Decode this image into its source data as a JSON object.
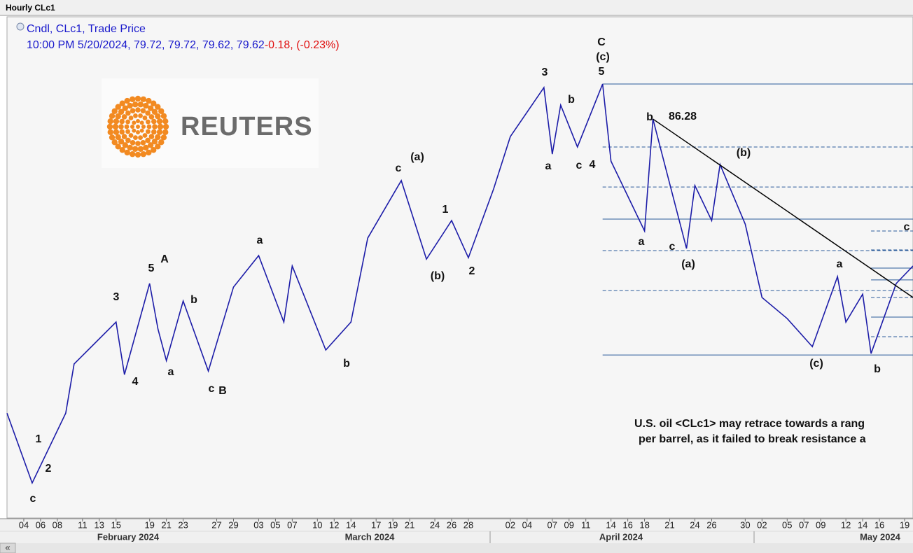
{
  "window_title": "Hourly CLc1",
  "chart_data": {
    "type": "line",
    "series": [
      {
        "name": "Cndl, CLc1, Trade Price",
        "color": "#1c1ca8",
        "values": [
          73.85,
          70.9,
          73.85,
          75.93,
          77.7,
          75.48,
          79.33,
          77.4,
          76.07,
          78.59,
          75.63,
          79.18,
          80.51,
          77.7,
          80.07,
          76.52,
          77.7,
          81.25,
          83.68,
          80.36,
          81.99,
          80.42,
          83.32,
          85.54,
          87.61,
          84.8,
          86.87,
          85.1,
          87.76,
          84.5,
          81.55,
          86.28,
          80.81,
          83.47,
          81.99,
          84.36,
          81.84,
          78.74,
          77.85,
          76.66,
          79.62,
          77.7,
          78.88,
          76.37,
          79.33,
          80.07
        ]
      }
    ],
    "x": [
      "2024-02-02",
      "2024-02-05",
      "2024-02-09",
      "2024-02-10",
      "2024-02-15",
      "2024-02-16",
      "2024-02-19",
      "2024-02-20",
      "2024-02-21",
      "2024-02-23",
      "2024-02-26",
      "2024-02-29",
      "2024-03-03",
      "2024-03-06",
      "2024-03-07",
      "2024-03-11",
      "2024-03-14",
      "2024-03-16",
      "2024-03-20",
      "2024-03-23",
      "2024-03-26",
      "2024-03-28",
      "2024-03-31",
      "2024-04-02",
      "2024-04-06",
      "2024-04-07",
      "2024-04-08",
      "2024-04-10",
      "2024-04-13",
      "2024-04-14",
      "2024-04-18",
      "2024-04-19",
      "2024-04-23",
      "2024-04-24",
      "2024-04-26",
      "2024-04-27",
      "2024-04-30",
      "2024-05-02",
      "2024-05-05",
      "2024-05-08",
      "2024-05-11",
      "2024-05-12",
      "2024-05-14",
      "2024-05-15",
      "2024-05-18",
      "2024-05-20"
    ],
    "legend_detail": "10:00 PM 5/20/2024, 79.72, 79.72, 79.62, 79.62",
    "legend_change": "-0.18, (-0.23%)",
    "xlim": [
      "2024-02-02",
      "2024-05-20"
    ],
    "ylim": [
      69.42,
      90.66
    ],
    "xticks": [
      {
        "value": "2024-02-04",
        "label": "04"
      },
      {
        "value": "2024-02-06",
        "label": "06"
      },
      {
        "value": "2024-02-08",
        "label": "08"
      },
      {
        "value": "2024-02-11",
        "label": "11"
      },
      {
        "value": "2024-02-13",
        "label": "13"
      },
      {
        "value": "2024-02-15",
        "label": "15"
      },
      {
        "value": "2024-02-19",
        "label": "19"
      },
      {
        "value": "2024-02-21",
        "label": "21"
      },
      {
        "value": "2024-02-23",
        "label": "23"
      },
      {
        "value": "2024-02-27",
        "label": "27"
      },
      {
        "value": "2024-02-29",
        "label": "29"
      },
      {
        "value": "2024-03-03",
        "label": "03"
      },
      {
        "value": "2024-03-05",
        "label": "05"
      },
      {
        "value": "2024-03-07",
        "label": "07"
      },
      {
        "value": "2024-03-10",
        "label": "10"
      },
      {
        "value": "2024-03-12",
        "label": "12"
      },
      {
        "value": "2024-03-14",
        "label": "14"
      },
      {
        "value": "2024-03-17",
        "label": "17"
      },
      {
        "value": "2024-03-19",
        "label": "19"
      },
      {
        "value": "2024-03-21",
        "label": "21"
      },
      {
        "value": "2024-03-24",
        "label": "24"
      },
      {
        "value": "2024-03-26",
        "label": "26"
      },
      {
        "value": "2024-03-28",
        "label": "28"
      },
      {
        "value": "2024-04-02",
        "label": "02"
      },
      {
        "value": "2024-04-04",
        "label": "04"
      },
      {
        "value": "2024-04-07",
        "label": "07"
      },
      {
        "value": "2024-04-09",
        "label": "09"
      },
      {
        "value": "2024-04-11",
        "label": "11"
      },
      {
        "value": "2024-04-14",
        "label": "14"
      },
      {
        "value": "2024-04-16",
        "label": "16"
      },
      {
        "value": "2024-04-18",
        "label": "18"
      },
      {
        "value": "2024-04-21",
        "label": "21"
      },
      {
        "value": "2024-04-24",
        "label": "24"
      },
      {
        "value": "2024-04-26",
        "label": "26"
      },
      {
        "value": "2024-04-30",
        "label": "30"
      },
      {
        "value": "2024-05-02",
        "label": "02"
      },
      {
        "value": "2024-05-05",
        "label": "05"
      },
      {
        "value": "2024-05-07",
        "label": "07"
      },
      {
        "value": "2024-05-09",
        "label": "09"
      },
      {
        "value": "2024-05-12",
        "label": "12"
      },
      {
        "value": "2024-05-14",
        "label": "14"
      },
      {
        "value": "2024-05-16",
        "label": "16"
      },
      {
        "value": "2024-05-19",
        "label": "19"
      }
    ],
    "months": [
      "February 2024",
      "March 2024",
      "April 2024",
      "May 2024"
    ],
    "levels": [
      {
        "value": 87.76,
        "from": "2024-04-13",
        "style": "solid"
      },
      {
        "value": 85.1,
        "from": "2024-04-13",
        "style": "dashed"
      },
      {
        "value": 83.41,
        "from": "2024-04-13",
        "style": "dashed"
      },
      {
        "value": 82.05,
        "from": "2024-04-13",
        "style": "solid"
      },
      {
        "value": 80.72,
        "from": "2024-04-13",
        "style": "dashed"
      },
      {
        "value": 79.03,
        "from": "2024-04-13",
        "style": "dashed"
      },
      {
        "value": 76.31,
        "from": "2024-04-13",
        "style": "solid"
      },
      {
        "value": 81.55,
        "from": "2024-05-15",
        "style": "dashed"
      },
      {
        "value": 80.75,
        "from": "2024-05-15",
        "style": "dashed"
      },
      {
        "value": 79.98,
        "from": "2024-05-15",
        "style": "solid"
      },
      {
        "value": 79.48,
        "from": "2024-05-15",
        "style": "solid"
      },
      {
        "value": 78.74,
        "from": "2024-05-15",
        "style": "dashed"
      },
      {
        "value": 77.91,
        "from": "2024-05-15",
        "style": "solid"
      },
      {
        "value": 77.08,
        "from": "2024-05-15",
        "style": "dashed"
      }
    ],
    "trendline": {
      "x": [
        "2024-04-19",
        "2024-05-20"
      ],
      "values": [
        86.28,
        78.74
      ]
    },
    "annotations": [
      "c",
      "2",
      "1",
      "3",
      "4",
      "5",
      "A",
      "a",
      "b",
      "c",
      "B",
      "a",
      "b",
      "c",
      "(a)",
      "(b)",
      "1",
      "2",
      "3",
      "a",
      "b",
      "c",
      "4",
      "5",
      "(c)",
      "C",
      "b",
      "86.28",
      "(b)",
      "a",
      "c",
      "(a)",
      "a",
      "(c)",
      "b",
      "c"
    ],
    "commentary": [
      "U.S. oil <CLc1> may retrace towards a rang",
      "per barrel, as it failed to break resistance a"
    ],
    "logo": "REUTERS"
  }
}
